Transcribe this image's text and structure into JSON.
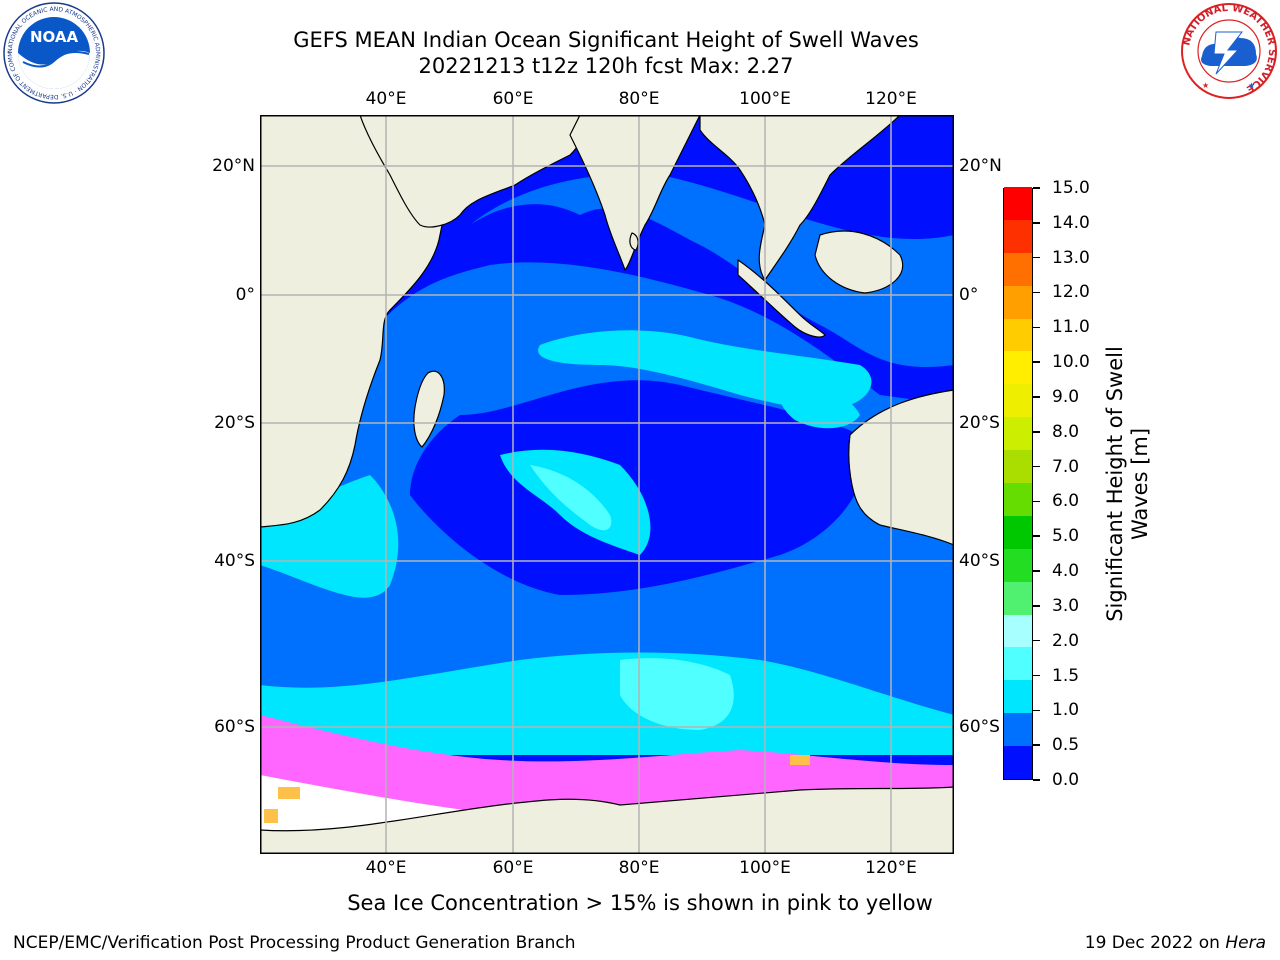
{
  "title": {
    "line1": "GEFS MEAN Indian Ocean Significant Height of Swell Waves",
    "line2": "20221213 t12z 120h fcst   Max: 2.27"
  },
  "map": {
    "lon_ticks": [
      "40°E",
      "60°E",
      "80°E",
      "100°E",
      "120°E"
    ],
    "lat_ticks_left": [
      "20°N",
      "0°",
      "20°S",
      "40°S",
      "60°S"
    ],
    "lat_ticks_right": [
      "20°N",
      "0°",
      "20°S",
      "40°S",
      "60°S"
    ],
    "colors": {
      "land": "#efefdf",
      "ocean_low": "#0010ff",
      "gridline": "#b4b4b4",
      "sea_ice_pink": "#ff66ff",
      "sea_ice_orange": "#ffc04a",
      "sea_ice_free": "#ffffff"
    }
  },
  "colorbar": {
    "title_line1": "Significant Height of Swell",
    "title_line2": "Waves [m]",
    "tick_labels": [
      "0.0",
      "0.5",
      "1.0",
      "1.5",
      "2.0",
      "3.0",
      "4.0",
      "5.0",
      "6.0",
      "7.0",
      "8.0",
      "9.0",
      "10.0",
      "11.0",
      "12.0",
      "13.0",
      "14.0",
      "15.0"
    ],
    "segment_colors": [
      "#0010ff",
      "#0070ff",
      "#00e6ff",
      "#50ffff",
      "#a8ffff",
      "#50f070",
      "#22dd22",
      "#00c800",
      "#66dd00",
      "#aadd00",
      "#ccee00",
      "#eeee00",
      "#ffee00",
      "#ffcc00",
      "#ffa000",
      "#ff7000",
      "#ff3000",
      "#ff0000"
    ]
  },
  "footnote": "Sea Ice Concentration > 15% is shown in pink to yellow",
  "credit": {
    "left": "NCEP/EMC/Verification Post Processing Product Generation Branch",
    "right_date": "19 Dec 2022 on",
    "right_host": "Hera"
  },
  "logos": {
    "noaa_text": "NOAA",
    "noaa_ring_text": "NATIONAL OCEANIC AND ATMOSPHERIC ADMINISTRATION · U.S. DEPARTMENT OF COMMERCE",
    "nws_ring_text": "NATIONAL WEATHER SERVICE"
  },
  "swell_regions": [
    {
      "name": "north-ocean-band",
      "level_m": 0.75
    },
    {
      "name": "central-indian-band",
      "level_m": 1.25
    },
    {
      "name": "southern-ocean-band",
      "level_m": 1.75
    },
    {
      "name": "sea-ice-edge",
      "level_m": null
    }
  ]
}
